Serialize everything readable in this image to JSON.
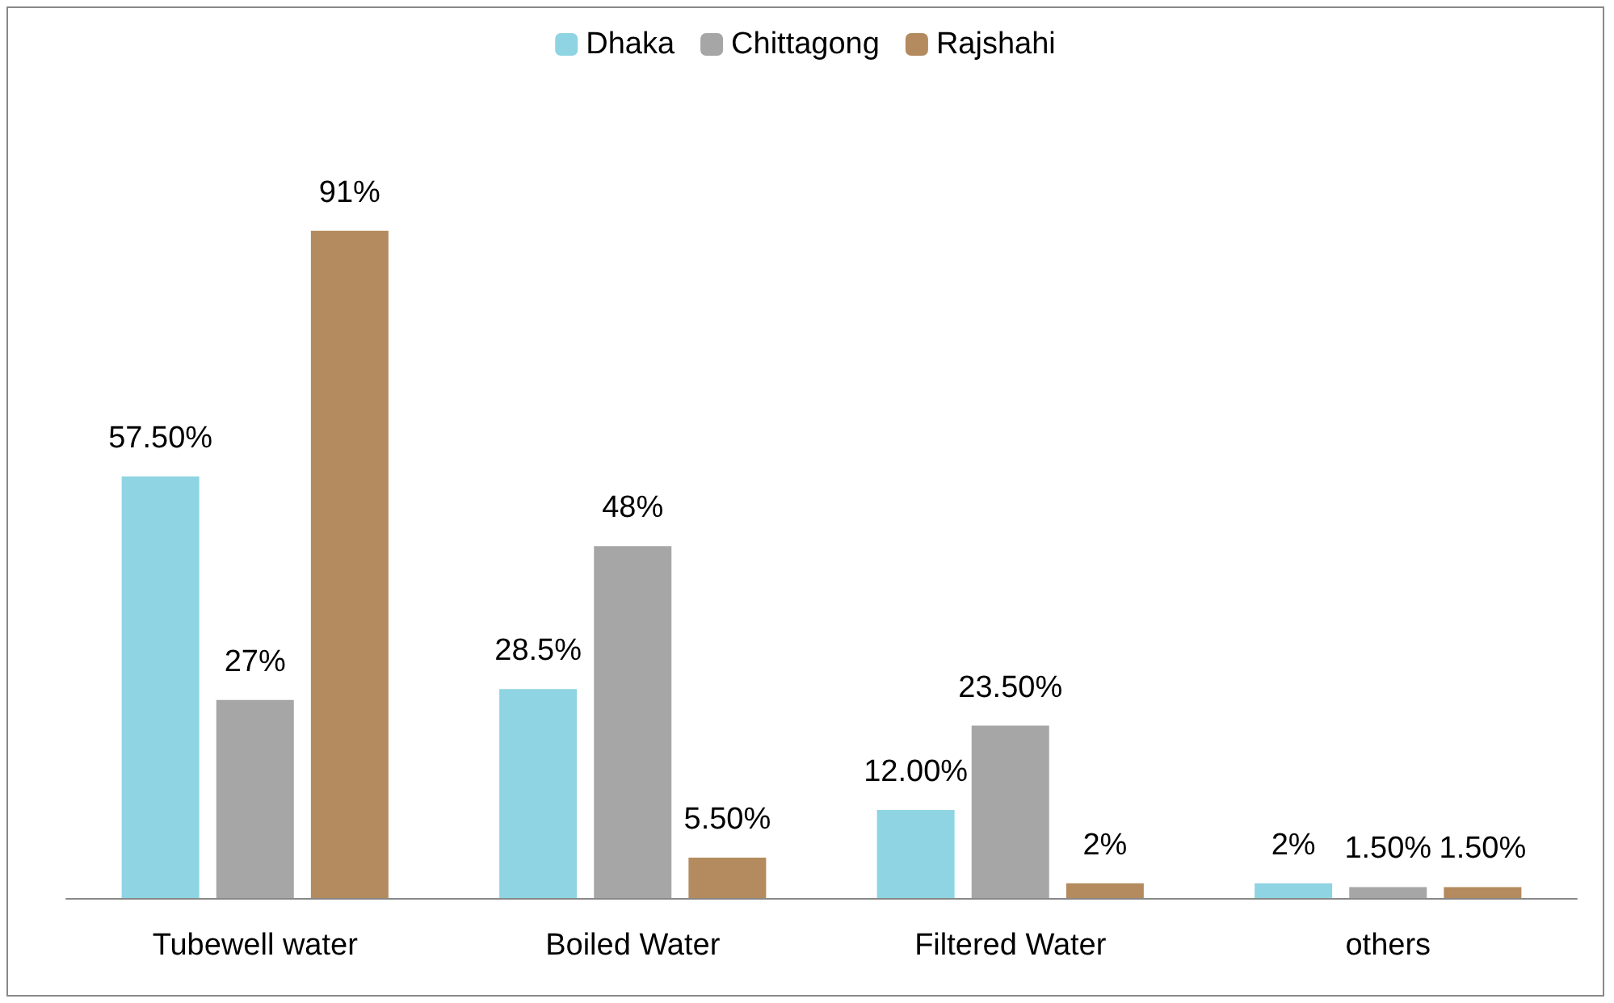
{
  "chart_data": {
    "type": "bar",
    "categories": [
      "Tubewell water",
      "Boiled Water",
      "Filtered Water",
      "others"
    ],
    "series": [
      {
        "name": "Dhaka",
        "color": "#8fd4e2",
        "values": [
          57.5,
          28.5,
          12,
          2
        ],
        "value_labels": [
          "57.50%",
          "28.5%",
          "12.00%",
          "2%"
        ]
      },
      {
        "name": "Chittagong",
        "color": "#a6a6a6",
        "values": [
          27,
          48,
          23.5,
          1.5
        ],
        "value_labels": [
          "27%",
          "48%",
          "23.50%",
          "1.50%"
        ]
      },
      {
        "name": "Rajshahi",
        "color": "#b38b5e",
        "values": [
          91,
          5.5,
          2,
          1.5
        ],
        "value_labels": [
          "91%",
          "5.50%",
          "2%",
          "1.50%"
        ]
      }
    ],
    "grid": false,
    "legend": "top"
  }
}
